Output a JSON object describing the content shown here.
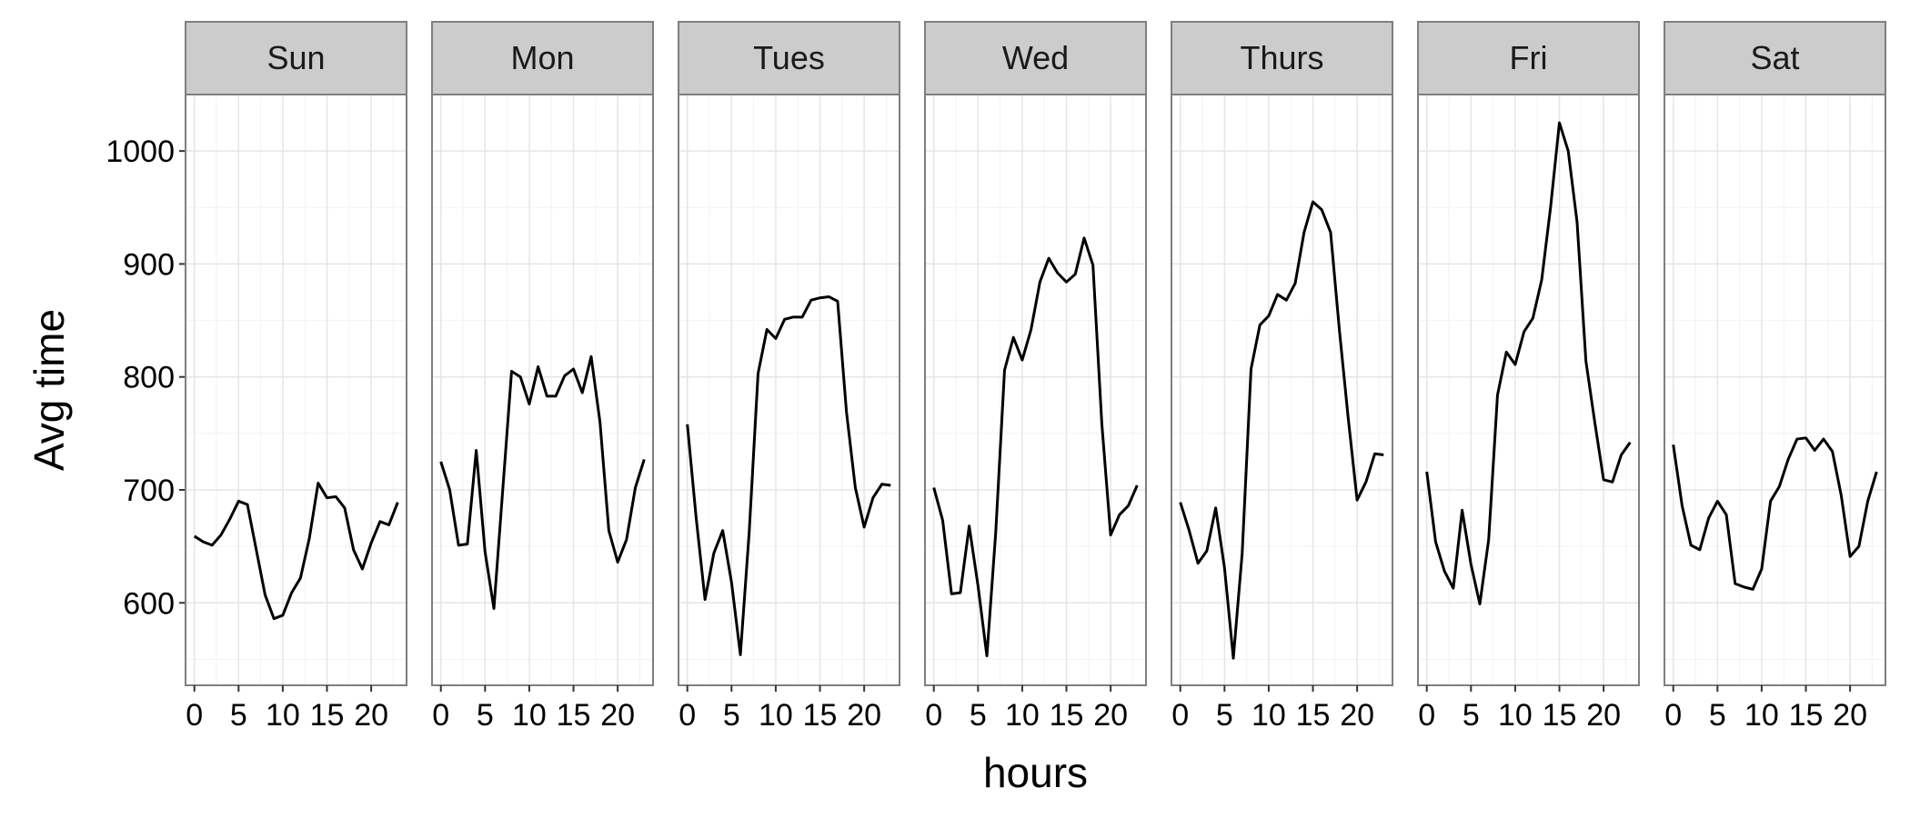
{
  "chart_data": {
    "type": "line",
    "xlabel": "hours",
    "ylabel": "Avg time",
    "xlim": [
      -1,
      24
    ],
    "ylim": [
      527,
      1050
    ],
    "x_ticks": [
      0,
      5,
      10,
      15,
      20
    ],
    "x_tick_labels": [
      "0",
      "5",
      "10",
      "15",
      "20"
    ],
    "y_ticks": [
      600,
      700,
      800,
      900,
      1000
    ],
    "y_tick_labels": [
      "600",
      "700",
      "800",
      "900",
      "1000"
    ],
    "grid": true,
    "line_color": "#000000",
    "facets": [
      {
        "name": "Sun",
        "x": [
          0,
          1,
          2,
          3,
          4,
          5,
          6,
          7,
          8,
          9,
          10,
          11,
          12,
          13,
          14,
          15,
          16,
          17,
          18,
          19,
          20,
          21,
          22,
          23
        ],
        "values": [
          659,
          654,
          651,
          660,
          674,
          690,
          687,
          647,
          607,
          586,
          589,
          609,
          622,
          657,
          706,
          693,
          694,
          684,
          647,
          630,
          653,
          672,
          669,
          689
        ]
      },
      {
        "name": "Mon",
        "x": [
          0,
          1,
          2,
          3,
          4,
          5,
          6,
          7,
          8,
          9,
          10,
          11,
          12,
          13,
          14,
          15,
          16,
          17,
          18,
          19,
          20,
          21,
          22,
          23
        ],
        "values": [
          725,
          700,
          651,
          652,
          735,
          645,
          595,
          700,
          805,
          800,
          776,
          809,
          783,
          783,
          801,
          807,
          786,
          818,
          760,
          664,
          636,
          656,
          702,
          727
        ]
      },
      {
        "name": "Tues",
        "x": [
          0,
          1,
          2,
          3,
          4,
          5,
          6,
          7,
          8,
          9,
          10,
          11,
          12,
          13,
          14,
          15,
          16,
          17,
          18,
          19,
          20,
          21,
          22,
          23
        ],
        "values": [
          758,
          675,
          603,
          644,
          664,
          618,
          554,
          663,
          803,
          842,
          834,
          851,
          853,
          853,
          868,
          870,
          871,
          867,
          769,
          702,
          667,
          693,
          705,
          704
        ]
      },
      {
        "name": "Wed",
        "x": [
          0,
          1,
          2,
          3,
          4,
          5,
          6,
          7,
          8,
          9,
          10,
          11,
          12,
          13,
          14,
          15,
          16,
          17,
          18,
          19,
          20,
          21,
          22,
          23
        ],
        "values": [
          702,
          673,
          608,
          609,
          668,
          615,
          553,
          662,
          806,
          835,
          815,
          842,
          884,
          905,
          892,
          884,
          891,
          923,
          899,
          759,
          660,
          678,
          686,
          704
        ]
      },
      {
        "name": "Thurs",
        "x": [
          0,
          1,
          2,
          3,
          4,
          5,
          6,
          7,
          8,
          9,
          10,
          11,
          12,
          13,
          14,
          15,
          16,
          17,
          18,
          19,
          20,
          21,
          22,
          23
        ],
        "values": [
          689,
          664,
          635,
          646,
          684,
          631,
          551,
          644,
          807,
          846,
          854,
          873,
          868,
          883,
          928,
          955,
          948,
          928,
          841,
          763,
          691,
          707,
          732,
          731
        ]
      },
      {
        "name": "Fri",
        "x": [
          0,
          1,
          2,
          3,
          4,
          5,
          6,
          7,
          8,
          9,
          10,
          11,
          12,
          13,
          14,
          15,
          16,
          17,
          18,
          19,
          20,
          21,
          22,
          23
        ],
        "values": [
          716,
          654,
          628,
          613,
          682,
          634,
          599,
          656,
          784,
          822,
          811,
          840,
          852,
          886,
          950,
          1025,
          1000,
          937,
          814,
          760,
          709,
          707,
          731,
          742
        ]
      },
      {
        "name": "Sat",
        "x": [
          0,
          1,
          2,
          3,
          4,
          5,
          6,
          7,
          8,
          9,
          10,
          11,
          12,
          13,
          14,
          15,
          16,
          17,
          18,
          19,
          20,
          21,
          22,
          23
        ],
        "values": [
          740,
          686,
          651,
          647,
          675,
          690,
          678,
          617,
          614,
          612,
          630,
          690,
          703,
          727,
          745,
          746,
          735,
          745,
          734,
          695,
          641,
          650,
          690,
          716
        ]
      }
    ]
  }
}
